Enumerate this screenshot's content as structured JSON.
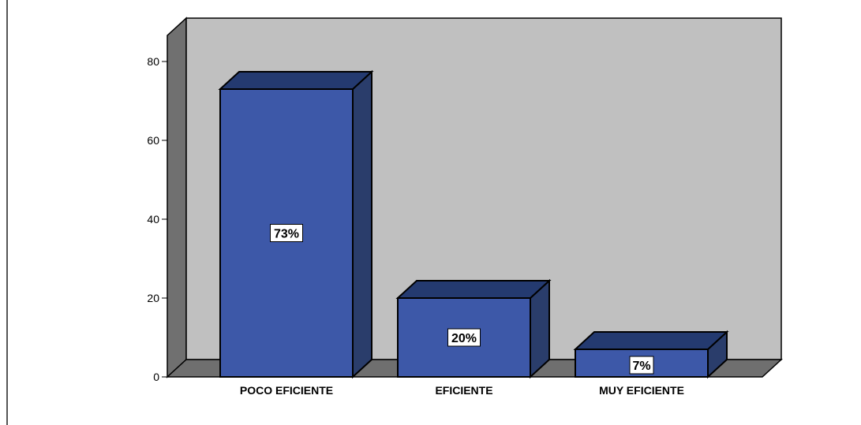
{
  "chart_data": {
    "type": "bar",
    "categories": [
      "POCO EFICIENTE",
      "EFICIENTE",
      "MUY EFICIENTE"
    ],
    "values": [
      73,
      20,
      7
    ],
    "data_labels": [
      "73%",
      "20%",
      "7%"
    ],
    "title": "",
    "xlabel": "",
    "ylabel": "",
    "ylim": [
      0,
      80
    ],
    "yticks": [
      0,
      20,
      40,
      60,
      80
    ],
    "grid": false,
    "style": "3d",
    "colors": {
      "bar_front": "#3d58a8",
      "bar_top": "#243a70",
      "bar_side": "#2a3d6b",
      "back_wall": "#c0c0c0",
      "side_wall": "#707070",
      "floor": "#6f6f6f",
      "outline": "#000000"
    }
  }
}
